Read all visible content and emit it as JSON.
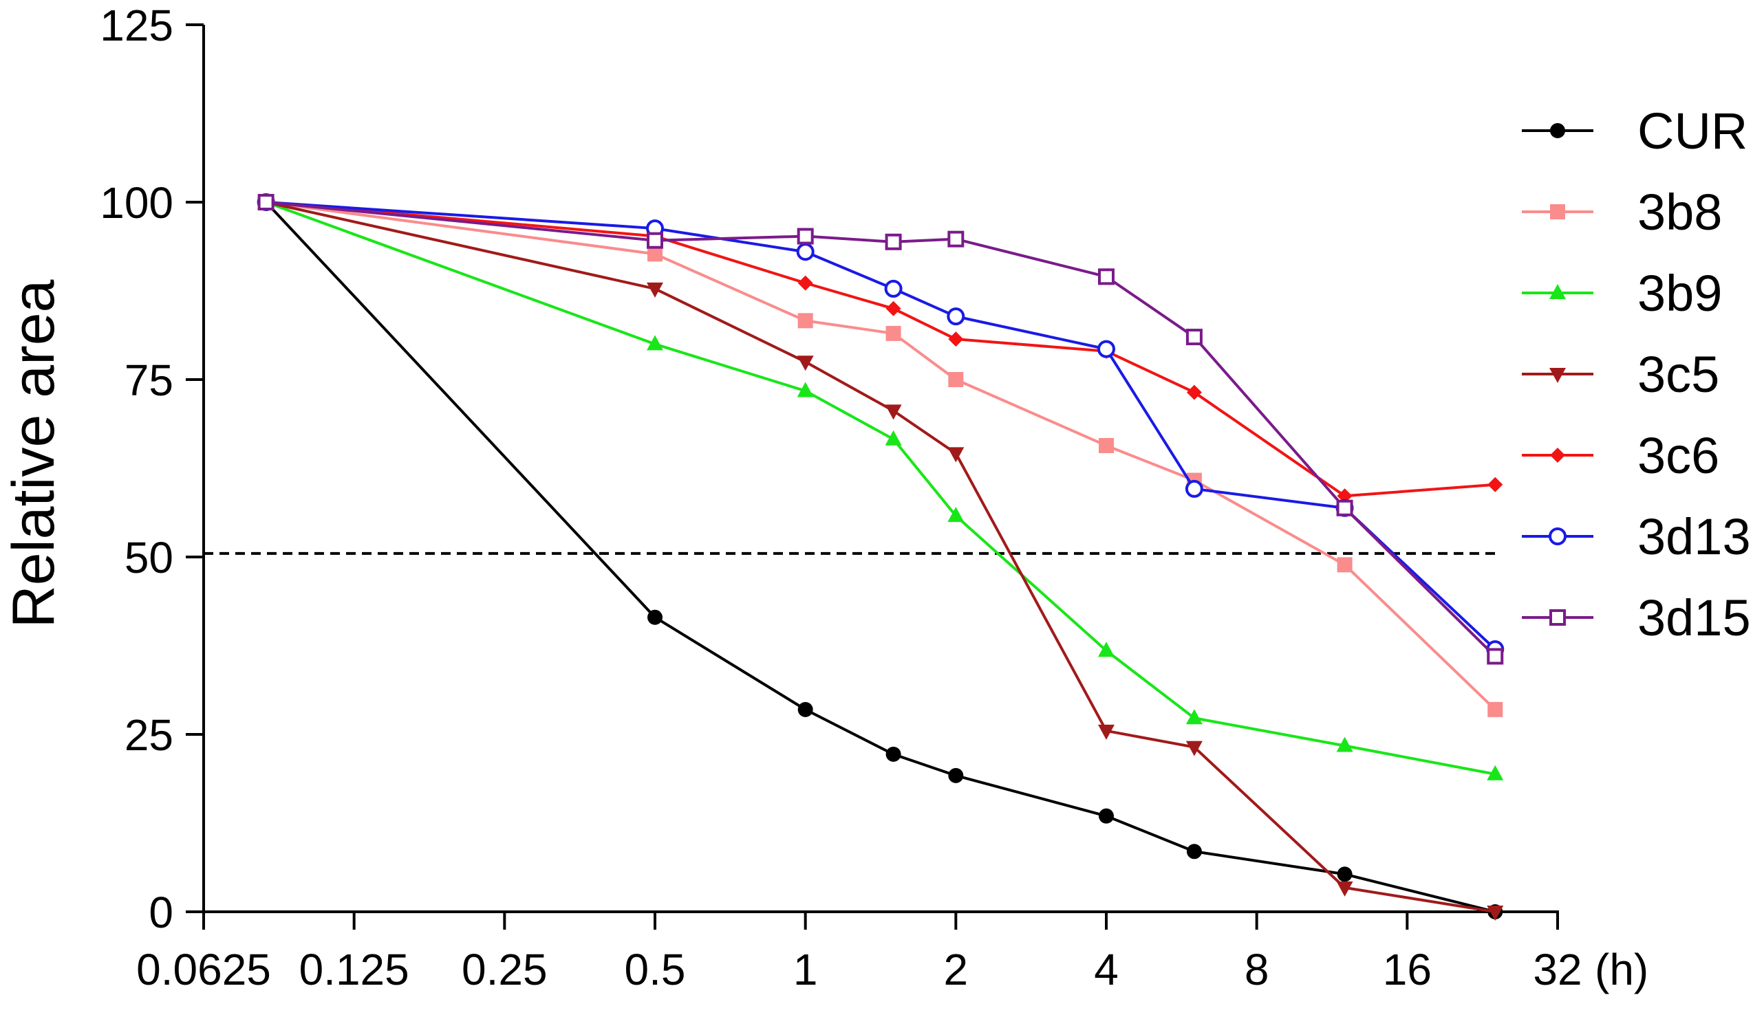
{
  "chart_data": {
    "type": "line",
    "title": "",
    "xlabel": "(h)",
    "ylabel": "Relative  area",
    "x_scale": "log2",
    "xlim": [
      0.0625,
      32
    ],
    "ylim": [
      0,
      125
    ],
    "x_ticks": [
      0.0625,
      0.125,
      0.25,
      0.5,
      1,
      2,
      4,
      8,
      16,
      32
    ],
    "x_tick_labels": [
      "0.0625",
      "0.125",
      "0.25",
      "0.5",
      "1",
      "2",
      "4",
      "8",
      "16",
      "32"
    ],
    "y_ticks": [
      0,
      25,
      50,
      75,
      100,
      125
    ],
    "y_tick_labels": [
      "0",
      "25",
      "50",
      "75",
      "100",
      "125"
    ],
    "reference_line": {
      "y": 50.5,
      "style": "dashed",
      "color": "#000000"
    },
    "legend_position": "right",
    "x": [
      0.0833,
      0.5,
      1,
      1.5,
      2,
      4,
      6,
      12,
      24
    ],
    "series": [
      {
        "name": "CUR",
        "color": "#000000",
        "marker": "circle-filled",
        "values": [
          100,
          41.5,
          28.5,
          22.2,
          19.2,
          13.5,
          8.5,
          5.3,
          0
        ]
      },
      {
        "name": "3b8",
        "color": "#FA8C8C",
        "marker": "square-filled",
        "values": [
          100,
          92.7,
          83.3,
          81.5,
          75.0,
          65.7,
          60.8,
          48.9,
          28.5
        ]
      },
      {
        "name": "3b9",
        "color": "#19E619",
        "marker": "triangle-up-filled",
        "values": [
          100,
          80.0,
          73.4,
          66.6,
          55.8,
          36.8,
          27.3,
          23.4,
          19.4
        ]
      },
      {
        "name": "3c5",
        "color": "#A11A1A",
        "marker": "triangle-down-filled",
        "values": [
          100,
          87.8,
          77.5,
          70.6,
          64.6,
          25.5,
          23.2,
          3.4,
          0
        ]
      },
      {
        "name": "3c6",
        "color": "#F21414",
        "marker": "diamond-filled",
        "values": [
          100,
          95.2,
          88.6,
          85.0,
          80.7,
          79.0,
          73.2,
          58.6,
          60.2
        ]
      },
      {
        "name": "3d13",
        "color": "#1A1AE6",
        "marker": "circle-open",
        "values": [
          100,
          96.3,
          93.0,
          87.8,
          83.9,
          79.3,
          59.6,
          56.9,
          37.0
        ]
      },
      {
        "name": "3d15",
        "color": "#7A1B8A",
        "marker": "square-open",
        "values": [
          100,
          94.6,
          95.2,
          94.4,
          94.8,
          89.5,
          81.0,
          56.9,
          36.0
        ]
      }
    ]
  }
}
